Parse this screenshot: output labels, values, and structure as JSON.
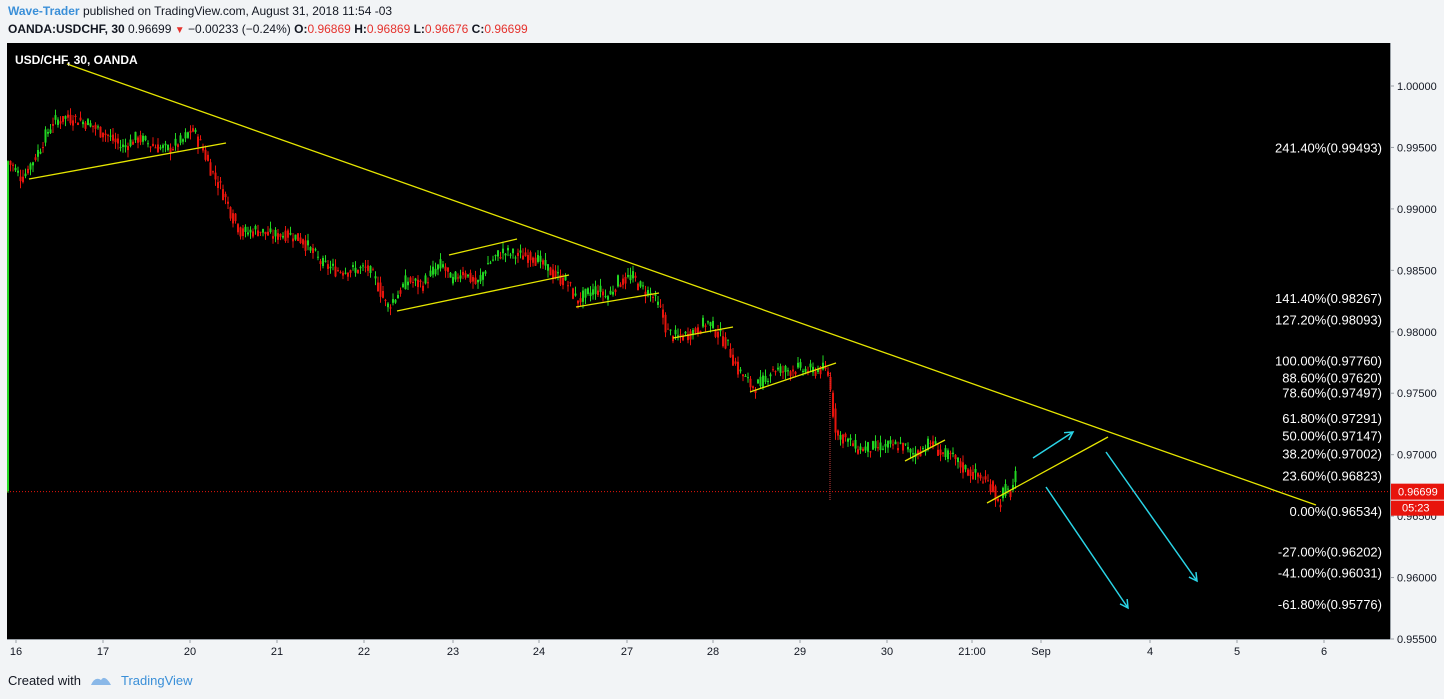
{
  "header": {
    "author": "Wave-Trader",
    "published_text": "published on TradingView.com, August 31, 2018 11:54 -03"
  },
  "quote": {
    "symbol": "OANDA:USDCHF, 30",
    "last": "0.96699",
    "change": "−0.00233 (−0.24%)",
    "open_label": "O:",
    "open": "0.96869",
    "high_label": "H:",
    "high": "0.96869",
    "low_label": "L:",
    "low": "0.96676",
    "close_label": "C:",
    "close": "0.96699"
  },
  "chart_title": "USD/CHF, 30, OANDA",
  "footer": {
    "created_with": "Created with",
    "brand": "TradingView"
  },
  "colors": {
    "background": "#000000",
    "up_candle": "#22d622",
    "down_candle": "#e8140c",
    "trendline": "#e6e600",
    "arrows": "#2ad4e6",
    "current_price_line": "#e8140c",
    "fib_text": "#ffffff"
  },
  "chart_data": {
    "type": "candlestick",
    "title": "USD/CHF, 30, OANDA",
    "ylim": [
      0.955,
      1.0035
    ],
    "y_ticks": [
      "0.95500",
      "0.96000",
      "0.96500",
      "0.97000",
      "0.97500",
      "0.98000",
      "0.98500",
      "0.99000",
      "0.99500",
      "1.00000"
    ],
    "x_ticks": [
      "16",
      "17",
      "20",
      "21",
      "22",
      "23",
      "24",
      "27",
      "28",
      "29",
      "30",
      "21:00",
      "Sep",
      "4",
      "5",
      "6"
    ],
    "current_price": {
      "label": "0.96699",
      "countdown": "05:23",
      "value": 0.96699
    },
    "fib_levels": [
      {
        "label": "241.40%(0.99493)",
        "value": 0.99493
      },
      {
        "label": "141.40%(0.98267)",
        "value": 0.98267
      },
      {
        "label": "127.20%(0.98093)",
        "value": 0.98093
      },
      {
        "label": "100.00%(0.97760)",
        "value": 0.9776
      },
      {
        "label": "88.60%(0.97620)",
        "value": 0.9762
      },
      {
        "label": "78.60%(0.97497)",
        "value": 0.97497
      },
      {
        "label": "61.80%(0.97291)",
        "value": 0.97291
      },
      {
        "label": "50.00%(0.97147)",
        "value": 0.97147
      },
      {
        "label": "38.20%(0.97002)",
        "value": 0.97002
      },
      {
        "label": "23.60%(0.96823)",
        "value": 0.96823
      },
      {
        "label": "0.00%(0.96534)",
        "value": 0.96534
      },
      {
        "label": "-27.00%(0.96202)",
        "value": 0.96202
      },
      {
        "label": "-41.00%(0.96031)",
        "value": 0.96031
      },
      {
        "label": "-61.80%(0.95776)",
        "value": 0.95776
      }
    ],
    "price_path": [
      [
        0,
        0.994
      ],
      [
        15,
        0.9925
      ],
      [
        30,
        0.9945
      ],
      [
        45,
        0.997
      ],
      [
        60,
        0.9975
      ],
      [
        80,
        0.997
      ],
      [
        100,
        0.996
      ],
      [
        115,
        0.995
      ],
      [
        130,
        0.9958
      ],
      [
        145,
        0.9952
      ],
      [
        160,
        0.9948
      ],
      [
        175,
        0.9955
      ],
      [
        185,
        0.9965
      ],
      [
        195,
        0.995
      ],
      [
        205,
        0.993
      ],
      [
        215,
        0.9915
      ],
      [
        225,
        0.9895
      ],
      [
        235,
        0.988
      ],
      [
        250,
        0.9883
      ],
      [
        265,
        0.9878
      ],
      [
        280,
        0.988
      ],
      [
        295,
        0.9875
      ],
      [
        305,
        0.9865
      ],
      [
        315,
        0.9855
      ],
      [
        330,
        0.985
      ],
      [
        345,
        0.985
      ],
      [
        360,
        0.9852
      ],
      [
        370,
        0.984
      ],
      [
        380,
        0.982
      ],
      [
        390,
        0.983
      ],
      [
        400,
        0.9842
      ],
      [
        415,
        0.9838
      ],
      [
        425,
        0.9848
      ],
      [
        435,
        0.9855
      ],
      [
        445,
        0.984
      ],
      [
        455,
        0.985
      ],
      [
        470,
        0.9838
      ],
      [
        480,
        0.9855
      ],
      [
        495,
        0.9865
      ],
      [
        510,
        0.9862
      ],
      [
        525,
        0.9862
      ],
      [
        535,
        0.9855
      ],
      [
        545,
        0.9848
      ],
      [
        560,
        0.984
      ],
      [
        570,
        0.9825
      ],
      [
        580,
        0.983
      ],
      [
        590,
        0.9835
      ],
      [
        600,
        0.9828
      ],
      [
        610,
        0.984
      ],
      [
        625,
        0.9845
      ],
      [
        635,
        0.9835
      ],
      [
        645,
        0.983
      ],
      [
        655,
        0.9815
      ],
      [
        660,
        0.98
      ],
      [
        670,
        0.9795
      ],
      [
        680,
        0.9798
      ],
      [
        690,
        0.9802
      ],
      [
        700,
        0.9808
      ],
      [
        710,
        0.98
      ],
      [
        720,
        0.979
      ],
      [
        730,
        0.977
      ],
      [
        740,
        0.976
      ],
      [
        745,
        0.9755
      ],
      [
        755,
        0.9758
      ],
      [
        765,
        0.977
      ],
      [
        775,
        0.9768
      ],
      [
        790,
        0.977
      ],
      [
        805,
        0.9768
      ],
      [
        815,
        0.977
      ],
      [
        822,
        0.9765
      ],
      [
        825,
        0.974
      ],
      [
        830,
        0.9715
      ],
      [
        835,
        0.9715
      ],
      [
        840,
        0.9712
      ],
      [
        850,
        0.9705
      ],
      [
        860,
        0.9705
      ],
      [
        875,
        0.9706
      ],
      [
        885,
        0.9707
      ],
      [
        895,
        0.9708
      ],
      [
        905,
        0.97
      ],
      [
        915,
        0.9705
      ],
      [
        925,
        0.971
      ],
      [
        935,
        0.97
      ],
      [
        945,
        0.9698
      ],
      [
        955,
        0.969
      ],
      [
        965,
        0.9685
      ],
      [
        975,
        0.968
      ],
      [
        985,
        0.9675
      ],
      [
        992,
        0.9658
      ],
      [
        997,
        0.9672
      ],
      [
        1003,
        0.9668
      ],
      [
        1010,
        0.9685
      ],
      [
        1012,
        0.967
      ]
    ]
  }
}
